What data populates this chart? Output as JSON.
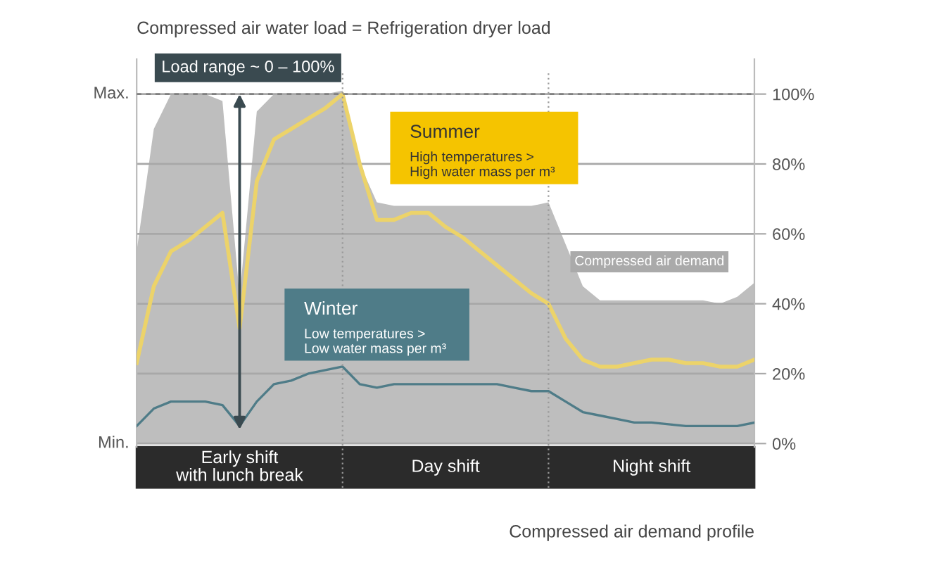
{
  "chart_data": {
    "type": "area",
    "title": "Compressed air water load = Refrigeration dryer load",
    "xlabel": "Compressed air demand profile",
    "categories": [
      null,
      null,
      null,
      null,
      null,
      null,
      null,
      null,
      null,
      null,
      null,
      null,
      null,
      null,
      null,
      null,
      null,
      null,
      null,
      null,
      null,
      null,
      null,
      null,
      null,
      null,
      null,
      null,
      null,
      null,
      null,
      null,
      null,
      null,
      null,
      null,
      null
    ],
    "series": [
      {
        "name": "Compressed air demand",
        "color": "#bebebe",
        "values": [
          55,
          90,
          100,
          100,
          100,
          98,
          42,
          95,
          100,
          100,
          100,
          100,
          101,
          80,
          69,
          68,
          68,
          68,
          68,
          68,
          68,
          68,
          68,
          68,
          69,
          57,
          45,
          41,
          41,
          41,
          41,
          41,
          41,
          41,
          40,
          42,
          46
        ]
      },
      {
        "name": "Summer",
        "type": "line",
        "color": "#ecd36a",
        "values": [
          23,
          45,
          55,
          58,
          62,
          66,
          33,
          75,
          87,
          90,
          93,
          96,
          100,
          80,
          64,
          64,
          66,
          66,
          62,
          59,
          55,
          51,
          47,
          43,
          40,
          30,
          24,
          22,
          22,
          23,
          24,
          24,
          23,
          23,
          22,
          22,
          24
        ]
      },
      {
        "name": "Winter",
        "type": "line",
        "color": "#4f7c88",
        "values": [
          5,
          10,
          12,
          12,
          12,
          11,
          5,
          12,
          17,
          18,
          20,
          21,
          22,
          17,
          16,
          17,
          17,
          17,
          17,
          17,
          17,
          17,
          16,
          15,
          15,
          12,
          9,
          8,
          7,
          6,
          6,
          5.5,
          5,
          5,
          5,
          5,
          6
        ]
      }
    ],
    "ylim": [
      -1,
      110
    ],
    "yticks": [
      {
        "value": 0,
        "label": "0%"
      },
      {
        "value": 20,
        "label": "20%"
      },
      {
        "value": 40,
        "label": "40%"
      },
      {
        "value": 60,
        "label": "60%"
      },
      {
        "value": 80,
        "label": "80%"
      },
      {
        "value": 100,
        "label": "100%"
      }
    ],
    "ref_lines": [
      {
        "axis": "y",
        "value": 100,
        "line_style": "dashed",
        "color": "#777777"
      }
    ],
    "annotations": [
      "Load range ~ 0 – 100%",
      "High temperatures >\nHigh water mass per m³",
      "Low temperatures >\nLow water mass per m³",
      "Early shift\nwith lunch break",
      "Day shift",
      "Night shift",
      "Max.",
      "Min."
    ],
    "grid": "y",
    "legend": false,
    "tick_labels": "y"
  }
}
